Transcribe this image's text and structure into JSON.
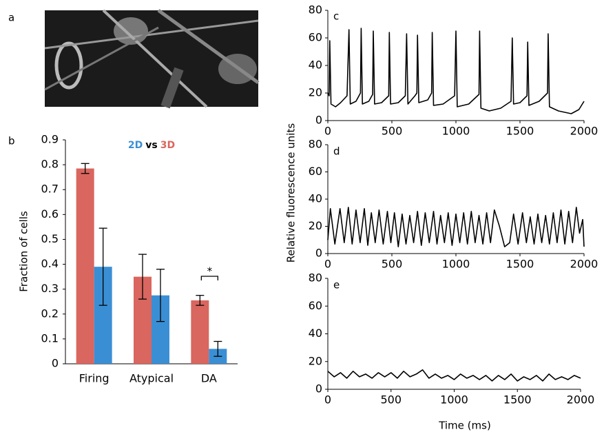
{
  "panel_a_label": "a",
  "shared_ylabel": "Relative fluorescence units",
  "shared_xlabel": "Time (ms)",
  "chart_data": [
    {
      "type": "bar",
      "label": "b",
      "ylabel": "Fraction of cells",
      "categories": [
        "Firing",
        "Atypical",
        "DA"
      ],
      "series": [
        {
          "name": "3D",
          "color": "#d9665f",
          "values": [
            0.785,
            0.35,
            0.255
          ],
          "errors": [
            0.02,
            0.09,
            0.02
          ]
        },
        {
          "name": "2D",
          "color": "#3a8fd4",
          "values": [
            0.39,
            0.275,
            0.06
          ],
          "errors": [
            0.155,
            0.105,
            0.03
          ]
        }
      ],
      "legend_joiner": "vs",
      "significance_marker": "*",
      "ylim": [
        0,
        0.9
      ],
      "yticks": [
        0,
        0.1,
        0.2,
        0.3,
        0.4,
        0.5,
        0.6,
        0.7,
        0.8,
        0.9
      ]
    },
    {
      "type": "line",
      "label": "c",
      "color": "#000000",
      "x": [
        0,
        10,
        15,
        25,
        60,
        100,
        150,
        165,
        175,
        220,
        255,
        260,
        270,
        320,
        350,
        355,
        365,
        420,
        475,
        480,
        490,
        550,
        605,
        615,
        625,
        680,
        695,
        700,
        710,
        780,
        810,
        815,
        825,
        900,
        990,
        1000,
        1010,
        1100,
        1180,
        1185,
        1195,
        1260,
        1350,
        1430,
        1440,
        1450,
        1500,
        1555,
        1560,
        1570,
        1650,
        1715,
        1720,
        1730,
        1800,
        1900,
        1960,
        2000
      ],
      "values": [
        20,
        18,
        58,
        12,
        10,
        13,
        18,
        66,
        12,
        14,
        20,
        67,
        12,
        14,
        19,
        65,
        12,
        13,
        18,
        64,
        12,
        13,
        18,
        63,
        12,
        18,
        20,
        62,
        13,
        15,
        20,
        64,
        11,
        12,
        18,
        65,
        10,
        12,
        19,
        65,
        9,
        7,
        9,
        14,
        60,
        12,
        13,
        18,
        57,
        11,
        14,
        20,
        63,
        10,
        7,
        5,
        8,
        14
      ],
      "xlim": [
        0,
        2000
      ],
      "xticks": [
        0,
        500,
        1000,
        1500,
        2000
      ],
      "ylim": [
        0,
        80
      ],
      "yticks": [
        0,
        20,
        40,
        60,
        80
      ]
    },
    {
      "type": "line",
      "label": "d",
      "color": "#000000",
      "x": [
        0,
        20,
        55,
        95,
        128,
        160,
        190,
        220,
        252,
        285,
        312,
        340,
        370,
        400,
        432,
        465,
        492,
        520,
        550,
        580,
        610,
        640,
        670,
        700,
        730,
        760,
        792,
        825,
        852,
        880,
        910,
        940,
        970,
        1000,
        1030,
        1060,
        1090,
        1120,
        1150,
        1180,
        1210,
        1240,
        1270,
        1300,
        1340,
        1380,
        1420,
        1450,
        1485,
        1520,
        1550,
        1580,
        1610,
        1640,
        1670,
        1700,
        1730,
        1760,
        1790,
        1820,
        1850,
        1880,
        1910,
        1940,
        1965,
        1990,
        2000
      ],
      "values": [
        10,
        33,
        7,
        33,
        8,
        34,
        7,
        32,
        8,
        33,
        6,
        30,
        8,
        32,
        7,
        31,
        8,
        30,
        5,
        29,
        7,
        28,
        8,
        31,
        6,
        30,
        8,
        31,
        7,
        28,
        8,
        30,
        6,
        29,
        8,
        30,
        7,
        31,
        8,
        28,
        7,
        30,
        8,
        32,
        20,
        5,
        8,
        29,
        7,
        30,
        8,
        27,
        7,
        29,
        8,
        28,
        7,
        30,
        8,
        32,
        7,
        31,
        8,
        34,
        15,
        25,
        5
      ],
      "xlim": [
        0,
        2000
      ],
      "xticks": [
        0,
        500,
        1000,
        1500,
        2000
      ],
      "ylim": [
        0,
        80
      ],
      "yticks": [
        0,
        20,
        40,
        60,
        80
      ]
    },
    {
      "type": "line",
      "label": "e",
      "color": "#000000",
      "x": [
        0,
        50,
        100,
        150,
        200,
        250,
        300,
        350,
        400,
        450,
        500,
        550,
        600,
        650,
        700,
        750,
        800,
        850,
        900,
        950,
        1000,
        1050,
        1100,
        1150,
        1200,
        1250,
        1300,
        1350,
        1400,
        1450,
        1500,
        1550,
        1600,
        1650,
        1700,
        1750,
        1800,
        1850,
        1900,
        1950,
        2000
      ],
      "values": [
        13,
        9,
        12,
        8,
        13,
        9,
        11,
        8,
        12,
        9,
        12,
        8,
        13,
        9,
        11,
        14,
        8,
        11,
        8,
        10,
        7,
        11,
        8,
        10,
        7,
        10,
        6,
        10,
        7,
        11,
        6,
        9,
        7,
        10,
        6,
        11,
        7,
        9,
        7,
        10,
        8
      ],
      "xlim": [
        0,
        2000
      ],
      "xticks": [
        0,
        500,
        1000,
        1500,
        2000
      ],
      "ylim": [
        0,
        80
      ],
      "yticks": [
        0,
        20,
        40,
        60,
        80
      ]
    }
  ]
}
